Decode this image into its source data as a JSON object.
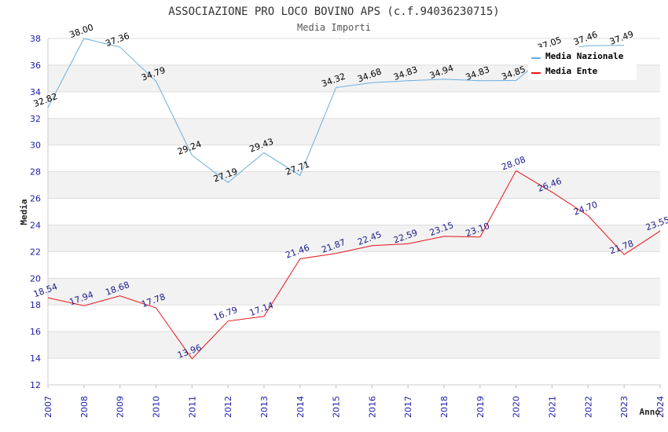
{
  "chart_data": {
    "type": "line",
    "title": "ASSOCIAZIONE PRO LOCO BOVINO APS (c.f.94036230715)",
    "subtitle": "Media Importi",
    "xlabel": "Anno",
    "ylabel": "Media",
    "ylim": [
      12,
      38
    ],
    "yticks": [
      "12",
      "14",
      "16",
      "18",
      "20",
      "22",
      "24",
      "26",
      "28",
      "30",
      "32",
      "34",
      "36",
      "38"
    ],
    "x": [
      "2007",
      "2008",
      "2009",
      "2010",
      "2011",
      "2012",
      "2013",
      "2014",
      "2015",
      "2016",
      "2017",
      "2018",
      "2019",
      "2020",
      "2021",
      "2022",
      "2023",
      "2024"
    ],
    "grid": true,
    "legend": "top-right",
    "series": [
      {
        "name": "Media Nazionale",
        "color": "#6aaee0",
        "values": [
          32.82,
          38.0,
          37.36,
          34.79,
          29.24,
          27.19,
          29.43,
          27.71,
          34.32,
          34.68,
          34.83,
          34.94,
          34.83,
          34.85,
          37.05,
          37.46,
          37.49,
          null
        ],
        "labels": [
          "32.82",
          "38.00",
          "37.36",
          "34.79",
          "29.24",
          "27.19",
          "29.43",
          "27.71",
          "34.32",
          "34.68",
          "34.83",
          "34.94",
          "34.83",
          "34.85",
          "37.05",
          "37.46",
          "37.49",
          null
        ]
      },
      {
        "name": "Media Ente",
        "color": "#e8131a",
        "values": [
          18.54,
          17.94,
          18.68,
          17.78,
          13.96,
          16.79,
          17.14,
          21.46,
          21.87,
          22.45,
          22.59,
          23.15,
          23.1,
          28.08,
          26.46,
          24.7,
          21.78,
          23.55
        ],
        "labels": [
          "18.54",
          "17.94",
          "18.68",
          "17.78",
          "13.96",
          "16.79",
          "17.14",
          "21.46",
          "21.87",
          "22.45",
          "22.59",
          "23.15",
          "23.10",
          "28.08",
          "26.46",
          "24.70",
          "21.78",
          "23.55"
        ]
      }
    ]
  }
}
